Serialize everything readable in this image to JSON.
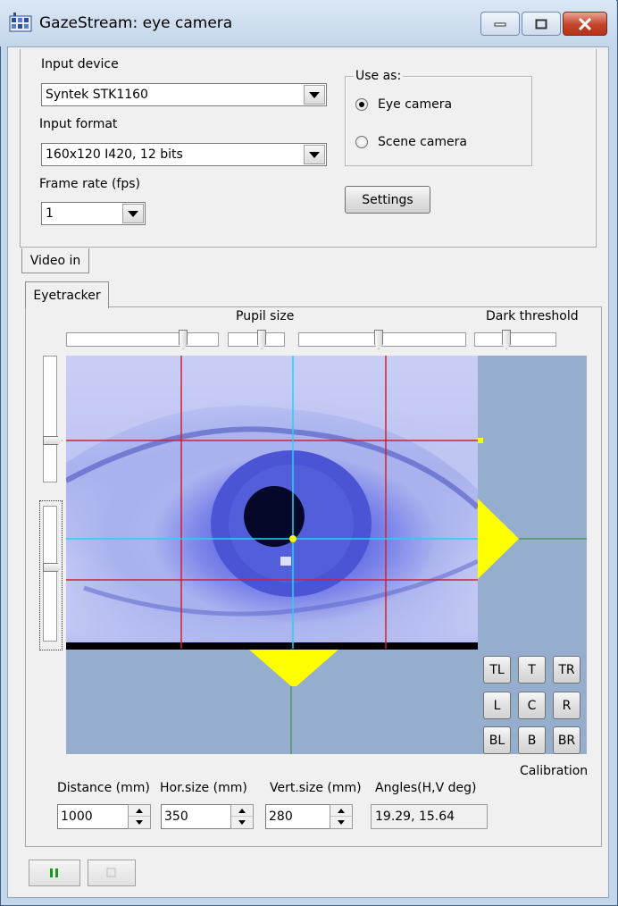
{
  "window": {
    "title": "GazeStream: eye camera",
    "icon": "app-grid-icon",
    "controls": [
      "minimize-icon",
      "maximize-icon",
      "close-icon"
    ]
  },
  "input": {
    "device_label": "Input device",
    "device_value": "Syntek STK1160",
    "format_label": "Input format",
    "format_value": "160x120 I420, 12 bits",
    "fps_label": "Frame rate (fps)",
    "fps_value": "1"
  },
  "use_as": {
    "title": "Use as:",
    "options": [
      {
        "label": "Eye camera",
        "checked": true
      },
      {
        "label": "Scene camera",
        "checked": false
      }
    ]
  },
  "settings_label": "Settings",
  "tabs": {
    "video_in": "Video in",
    "eyetracker": "Eyetracker"
  },
  "sliders": {
    "pupil_size_label": "Pupil size",
    "dark_threshold_label": "Dark threshold"
  },
  "calibration": {
    "buttons": [
      "TL",
      "T",
      "TR",
      "L",
      "C",
      "R",
      "BL",
      "B",
      "BR"
    ],
    "label": "Calibration"
  },
  "measurements": {
    "distance_label": "Distance (mm)",
    "distance_value": "1000",
    "hor_label": "Hor.size (mm)",
    "hor_value": "350",
    "vert_label": "Vert.size (mm)",
    "vert_value": "280",
    "angles_label": "Angles(H,V deg)",
    "angles_value": "19.29, 15.64"
  },
  "colors": {
    "video_background": "#96aece",
    "grid_red": "#d4202a",
    "crosshair_cyan": "#21d4f0",
    "indicator_yellow": "#ffff00",
    "guide_green": "#2a8a2a",
    "play_green": "#1a9a1a"
  },
  "bottom": {
    "play_icon": "pause-icon",
    "stop_icon": "stop-icon"
  }
}
